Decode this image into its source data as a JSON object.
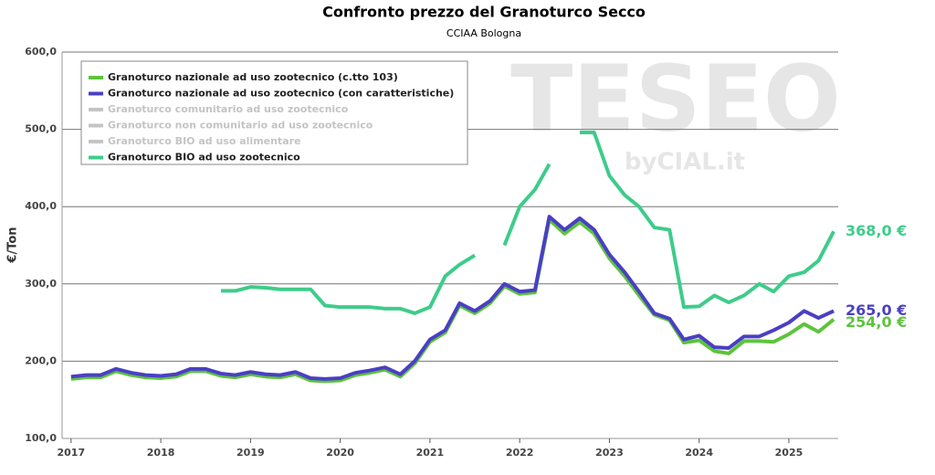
{
  "chart_data": {
    "type": "line",
    "title": "Confronto prezzo del Granoturco Secco",
    "subtitle": "CCIAA Bologna",
    "y_label": "€/Ton",
    "watermark": "TESEO",
    "watermark_sub": "byCIAL.it",
    "x": [
      2017.0,
      2017.17,
      2017.33,
      2017.5,
      2017.67,
      2017.83,
      2018.0,
      2018.17,
      2018.33,
      2018.5,
      2018.67,
      2018.83,
      2019.0,
      2019.17,
      2019.33,
      2019.5,
      2019.67,
      2019.83,
      2020.0,
      2020.17,
      2020.33,
      2020.5,
      2020.67,
      2020.83,
      2021.0,
      2021.17,
      2021.33,
      2021.5,
      2021.67,
      2021.83,
      2022.0,
      2022.17,
      2022.33,
      2022.5,
      2022.67,
      2022.83,
      2023.0,
      2023.17,
      2023.33,
      2023.5,
      2023.67,
      2023.83,
      2024.0,
      2024.17,
      2024.33,
      2024.5,
      2024.67,
      2024.83,
      2025.0,
      2025.17,
      2025.33,
      2025.5
    ],
    "series": [
      {
        "name": "Granoturco nazionale ad uso zootecnico (c.tto 103)",
        "color": "#5cc43c",
        "end_label": "254,0 €",
        "values": [
          177,
          179,
          179,
          187,
          182,
          179,
          178,
          180,
          187,
          187,
          181,
          179,
          183,
          180,
          179,
          183,
          175,
          174,
          175,
          182,
          185,
          189,
          180,
          197,
          225,
          237,
          272,
          262,
          275,
          297,
          287,
          289,
          383,
          365,
          380,
          365,
          333,
          310,
          285,
          260,
          253,
          224,
          227,
          213,
          210,
          226,
          226,
          225,
          235,
          248,
          238,
          254
        ]
      },
      {
        "name": "Granoturco nazionale ad uso zootecnico (con caratteristiche)",
        "color": "#4a3fc4",
        "end_label": "265,0 €",
        "values": [
          180,
          182,
          182,
          190,
          185,
          182,
          181,
          183,
          190,
          190,
          184,
          182,
          186,
          183,
          182,
          186,
          178,
          177,
          178,
          185,
          188,
          192,
          183,
          200,
          228,
          240,
          275,
          265,
          278,
          300,
          290,
          292,
          387,
          370,
          385,
          370,
          338,
          315,
          290,
          262,
          255,
          228,
          233,
          218,
          217,
          232,
          232,
          240,
          250,
          265,
          256,
          265
        ]
      },
      {
        "name": "Granoturco BIO ad uso zootecnico",
        "color": "#3ecc8a",
        "end_label": "368,0 €",
        "values": [
          null,
          null,
          null,
          null,
          null,
          null,
          null,
          null,
          null,
          null,
          291,
          291,
          296,
          295,
          293,
          293,
          293,
          272,
          270,
          270,
          270,
          268,
          268,
          262,
          270,
          310,
          325,
          337,
          null,
          350,
          400,
          422,
          455,
          null,
          496,
          496,
          440,
          415,
          400,
          373,
          370,
          270,
          271,
          285,
          276,
          285,
          300,
          290,
          310,
          315,
          330,
          368
        ]
      }
    ],
    "hidden_series": [
      "Granoturco comunitario ad uso zootecnico",
      "Granoturco non comunitario ad uso zootecnico",
      "Granoturco BIO ad uso alimentare"
    ],
    "hidden_color": "#c4c4c4",
    "xlim": [
      2016.9,
      2025.55
    ],
    "xticks": [
      2017,
      2018,
      2019,
      2020,
      2021,
      2022,
      2023,
      2024,
      2025
    ],
    "ylim": [
      100,
      600
    ],
    "yticks": [
      {
        "value": 100,
        "label": "100,0"
      },
      {
        "value": 200,
        "label": "200,0"
      },
      {
        "value": 300,
        "label": "300,0"
      },
      {
        "value": 400,
        "label": "400,0"
      },
      {
        "value": 500,
        "label": "500,0"
      },
      {
        "value": 600,
        "label": "600,0"
      }
    ],
    "grid": true
  }
}
